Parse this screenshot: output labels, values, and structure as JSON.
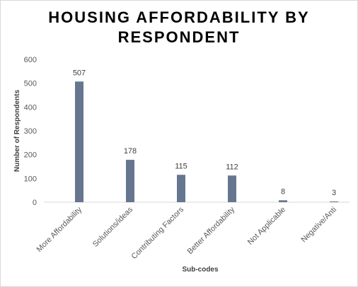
{
  "chart_data": {
    "type": "bar",
    "title_lines": [
      "HOUSING AFFORDABILITY BY",
      "RESPONDENT"
    ],
    "xlabel": "Sub-codes",
    "ylabel": "Number of Respondents",
    "categories": [
      "More Affordability",
      "Solutions/ideas",
      "Contributing Factors",
      "Better Affordability",
      "Not Applicable",
      "Negative/Anti"
    ],
    "values": [
      507,
      178,
      115,
      112,
      8,
      3
    ],
    "data_labels": [
      "507",
      "178",
      "115",
      "112",
      "8",
      "3"
    ],
    "yticks": [
      "0",
      "100",
      "200",
      "300",
      "400",
      "500",
      "600"
    ],
    "ylim": [
      0,
      600
    ],
    "grid": false,
    "legend": "none",
    "bar_color": "#67768f"
  }
}
